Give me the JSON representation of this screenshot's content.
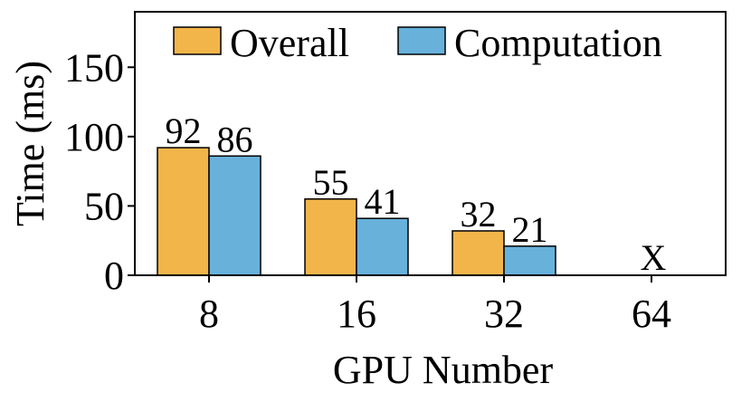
{
  "chart_data": {
    "type": "bar",
    "categories": [
      "8",
      "16",
      "32",
      "64"
    ],
    "series": [
      {
        "name": "Overall",
        "values": [
          92,
          55,
          32,
          null
        ],
        "labels": [
          "92",
          "55",
          "32",
          ""
        ],
        "color": "#f2b54a"
      },
      {
        "name": "Computation",
        "values": [
          86,
          41,
          21,
          null
        ],
        "labels": [
          "86",
          "41",
          "21",
          ""
        ],
        "color": "#67b1db"
      }
    ],
    "xlabel": "GPU Number",
    "ylabel": "Time (ms)",
    "ylim": [
      0,
      190
    ],
    "yticks": [
      0,
      50,
      100,
      150
    ],
    "ytick_labels": [
      "0",
      "50",
      "100",
      "150"
    ],
    "missing_marker": {
      "category": "64",
      "text": "X"
    },
    "grid": false,
    "legend_placement": "top"
  }
}
